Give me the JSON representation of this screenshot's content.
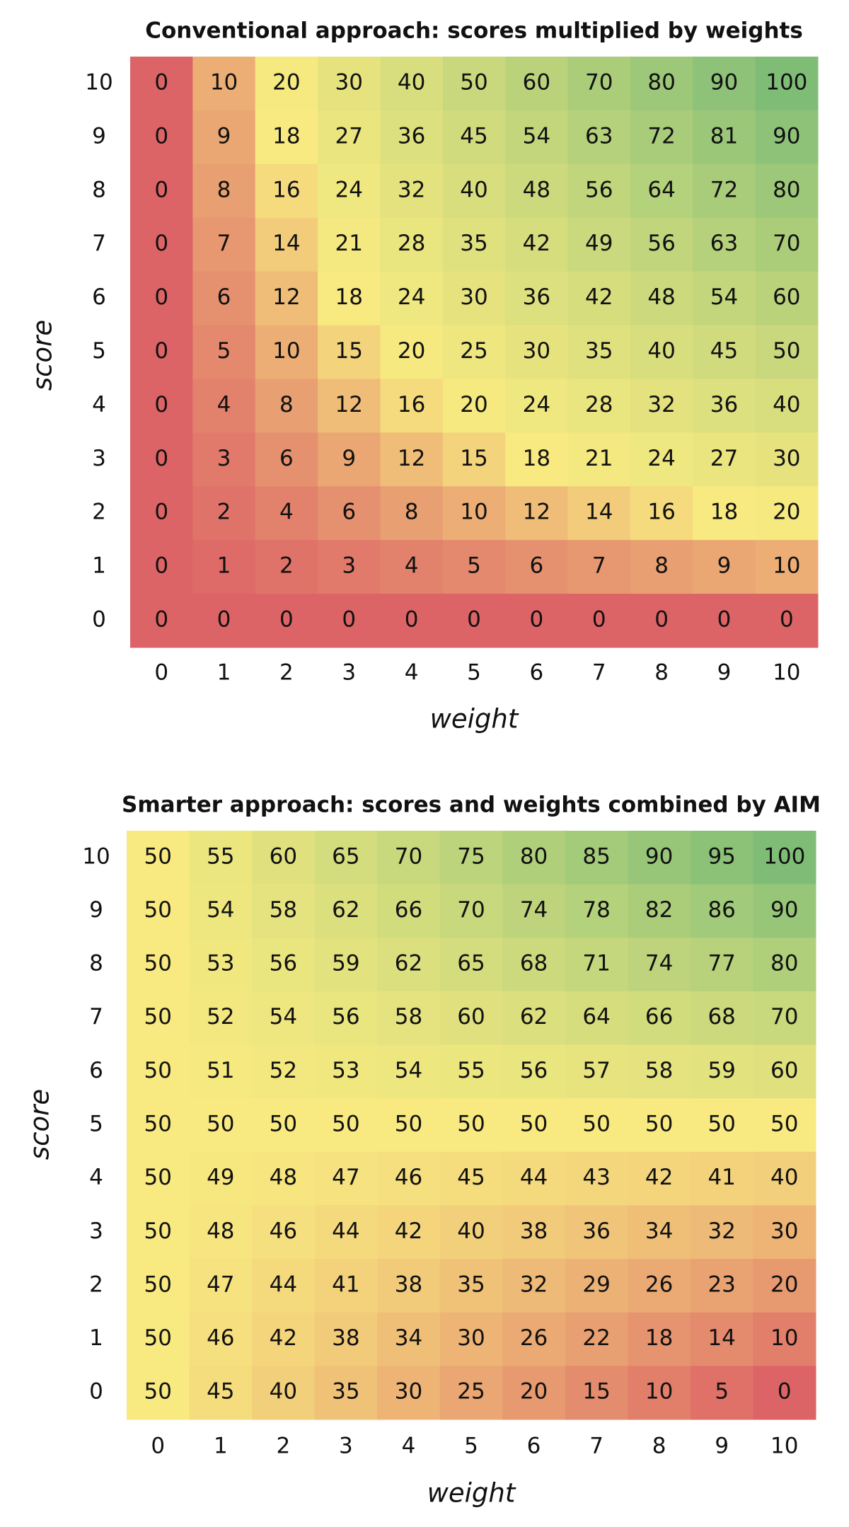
{
  "chart_data": [
    {
      "type": "heatmap",
      "title": "Conventional approach: scores multiplied by weights",
      "xlabel": "weight",
      "ylabel": "score",
      "x_categories": [
        0,
        1,
        2,
        3,
        4,
        5,
        6,
        7,
        8,
        9,
        10
      ],
      "y_categories": [
        10,
        9,
        8,
        7,
        6,
        5,
        4,
        3,
        2,
        1,
        0
      ],
      "values": [
        [
          0,
          10,
          20,
          30,
          40,
          50,
          60,
          70,
          80,
          90,
          100
        ],
        [
          0,
          9,
          18,
          27,
          36,
          45,
          54,
          63,
          72,
          81,
          90
        ],
        [
          0,
          8,
          16,
          24,
          32,
          40,
          48,
          56,
          64,
          72,
          80
        ],
        [
          0,
          7,
          14,
          21,
          28,
          35,
          42,
          49,
          56,
          63,
          70
        ],
        [
          0,
          6,
          12,
          18,
          24,
          30,
          36,
          42,
          48,
          54,
          60
        ],
        [
          0,
          5,
          10,
          15,
          20,
          25,
          30,
          35,
          40,
          45,
          50
        ],
        [
          0,
          4,
          8,
          12,
          16,
          20,
          24,
          28,
          32,
          36,
          40
        ],
        [
          0,
          3,
          6,
          9,
          12,
          15,
          18,
          21,
          24,
          27,
          30
        ],
        [
          0,
          2,
          4,
          6,
          8,
          10,
          12,
          14,
          16,
          18,
          20
        ],
        [
          0,
          1,
          2,
          3,
          4,
          5,
          6,
          7,
          8,
          9,
          10
        ],
        [
          0,
          0,
          0,
          0,
          0,
          0,
          0,
          0,
          0,
          0,
          0
        ]
      ],
      "colors": [
        "#dc6466",
        "#f8ea80",
        "#7fbd77"
      ]
    },
    {
      "type": "heatmap",
      "title": "Smarter approach: scores and weights combined by AIM",
      "xlabel": "weight",
      "ylabel": "score",
      "x_categories": [
        0,
        1,
        2,
        3,
        4,
        5,
        6,
        7,
        8,
        9,
        10
      ],
      "y_categories": [
        10,
        9,
        8,
        7,
        6,
        5,
        4,
        3,
        2,
        1,
        0
      ],
      "values": [
        [
          50,
          55,
          60,
          65,
          70,
          75,
          80,
          85,
          90,
          95,
          100
        ],
        [
          50,
          54,
          58,
          62,
          66,
          70,
          74,
          78,
          82,
          86,
          90
        ],
        [
          50,
          53,
          56,
          59,
          62,
          65,
          68,
          71,
          74,
          77,
          80
        ],
        [
          50,
          52,
          54,
          56,
          58,
          60,
          62,
          64,
          66,
          68,
          70
        ],
        [
          50,
          51,
          52,
          53,
          54,
          55,
          56,
          57,
          58,
          59,
          60
        ],
        [
          50,
          50,
          50,
          50,
          50,
          50,
          50,
          50,
          50,
          50,
          50
        ],
        [
          50,
          49,
          48,
          47,
          46,
          45,
          44,
          43,
          42,
          41,
          40
        ],
        [
          50,
          48,
          46,
          44,
          42,
          40,
          38,
          36,
          34,
          32,
          30
        ],
        [
          50,
          47,
          44,
          41,
          38,
          35,
          32,
          29,
          26,
          23,
          20
        ],
        [
          50,
          46,
          42,
          38,
          34,
          30,
          26,
          22,
          18,
          14,
          10
        ],
        [
          50,
          45,
          40,
          35,
          30,
          25,
          20,
          15,
          10,
          5,
          0
        ]
      ],
      "colors": [
        "#dc6466",
        "#f8ea80",
        "#7fbd77"
      ]
    }
  ]
}
